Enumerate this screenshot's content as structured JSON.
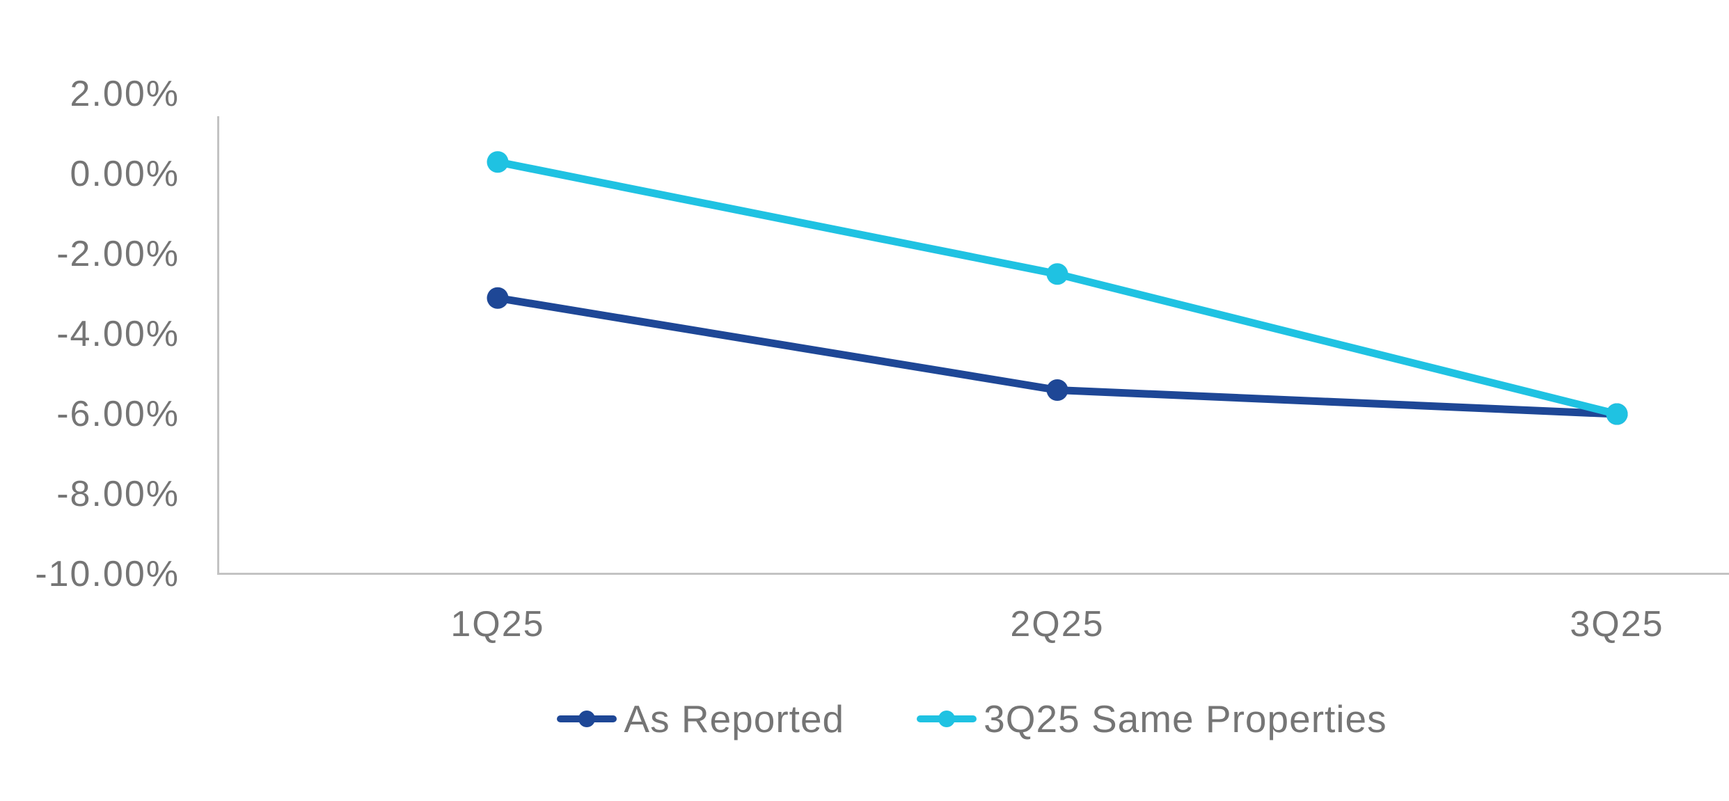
{
  "chart_data": {
    "type": "line",
    "title": "",
    "xlabel": "",
    "ylabel": "",
    "categories": [
      "1Q25",
      "2Q25",
      "3Q25"
    ],
    "series": [
      {
        "name": "As Reported",
        "color": "#1E4796",
        "values": [
          -3.1,
          -5.4,
          -6.0
        ]
      },
      {
        "name": "3Q25 Same Properties",
        "color": "#1FC2E2",
        "values": [
          0.3,
          -2.5,
          -6.0
        ]
      }
    ],
    "y_ticks": [
      2,
      0,
      -2,
      -4,
      -6,
      -8,
      -10
    ],
    "y_tick_labels": [
      "2.00%",
      "0.00%",
      "-2.00%",
      "-4.00%",
      "-6.00%",
      "-8.00%",
      "-10.00%"
    ],
    "ylim": [
      -10,
      2
    ],
    "grid": false,
    "legend_position": "bottom",
    "marker_style": "circle"
  },
  "colors": {
    "axis_line": "#C3C3C3",
    "label_text": "#757575",
    "background": "#FFFFFF"
  }
}
